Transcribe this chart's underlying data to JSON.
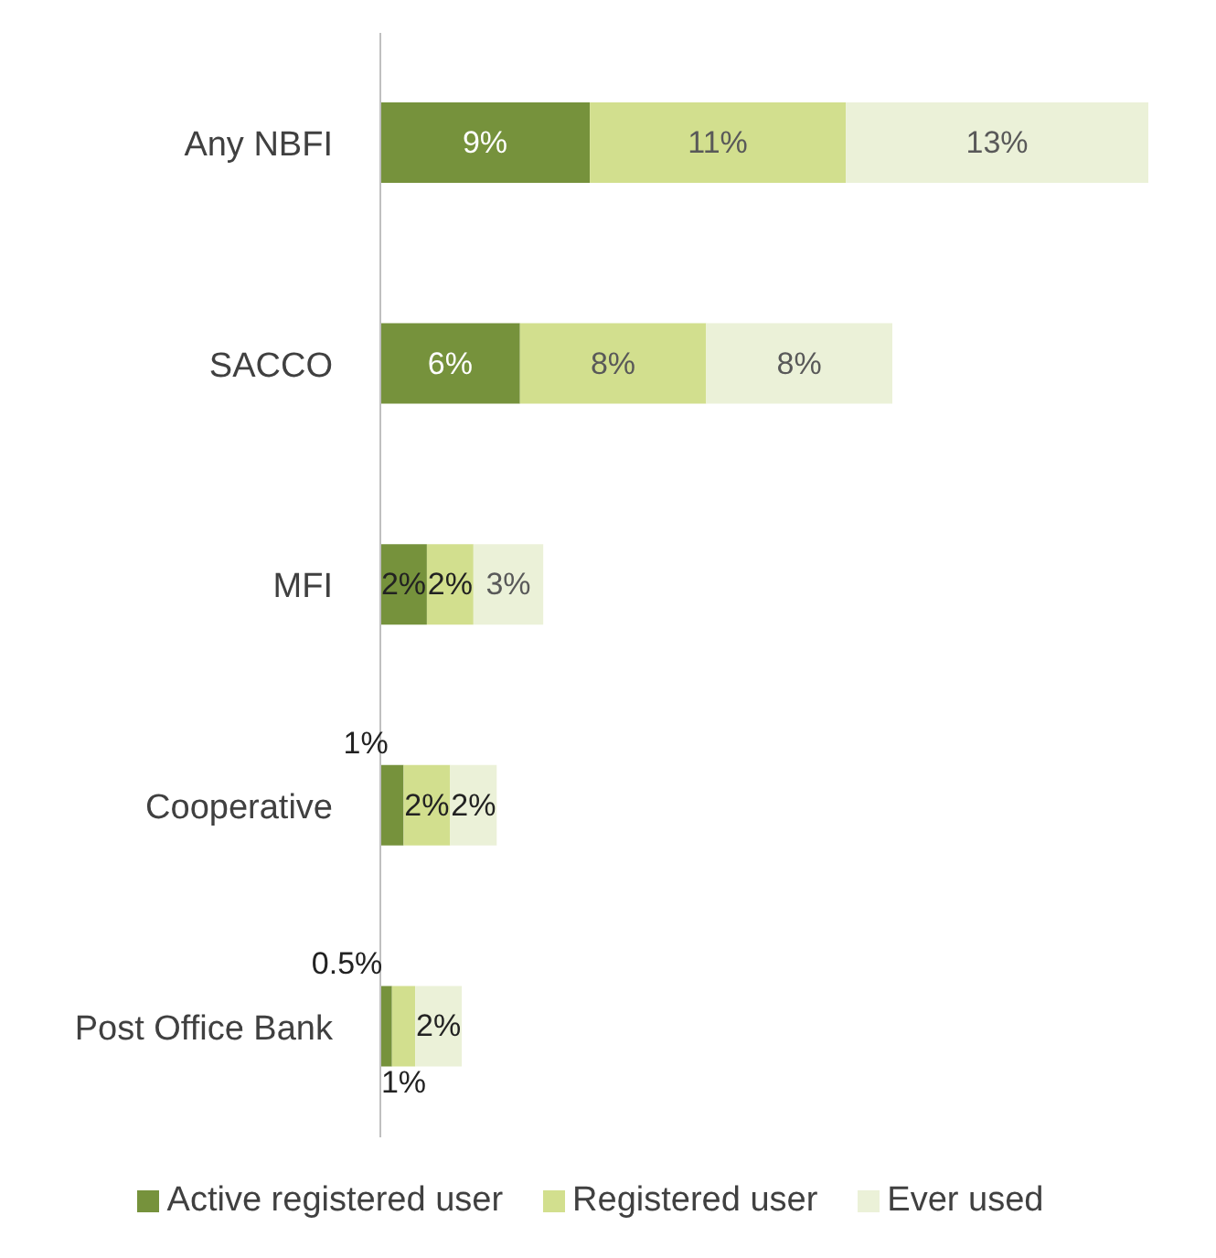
{
  "chart_data": {
    "type": "bar",
    "orientation": "horizontal",
    "stacked": true,
    "categories": [
      "Any NBFI",
      "SACCO",
      "MFI",
      "Cooperative",
      "Post Office Bank"
    ],
    "series": [
      {
        "name": "Active registered user",
        "color": "#76923c",
        "values": [
          9,
          6,
          2,
          1,
          0.5
        ],
        "value_labels": [
          "9%",
          "6%",
          "2%",
          "1%",
          "0.5%"
        ]
      },
      {
        "name": "Registered user",
        "color": "#d2df8e",
        "values": [
          11,
          8,
          2,
          2,
          1
        ],
        "value_labels": [
          "11%",
          "8%",
          "2%",
          "2%",
          "1%"
        ]
      },
      {
        "name": "Ever used",
        "color": "#ebf1d8",
        "values": [
          13,
          8,
          3,
          2,
          2
        ],
        "value_labels": [
          "13%",
          "8%",
          "3%",
          "2%",
          "2%"
        ]
      }
    ],
    "legend": "bottom"
  }
}
